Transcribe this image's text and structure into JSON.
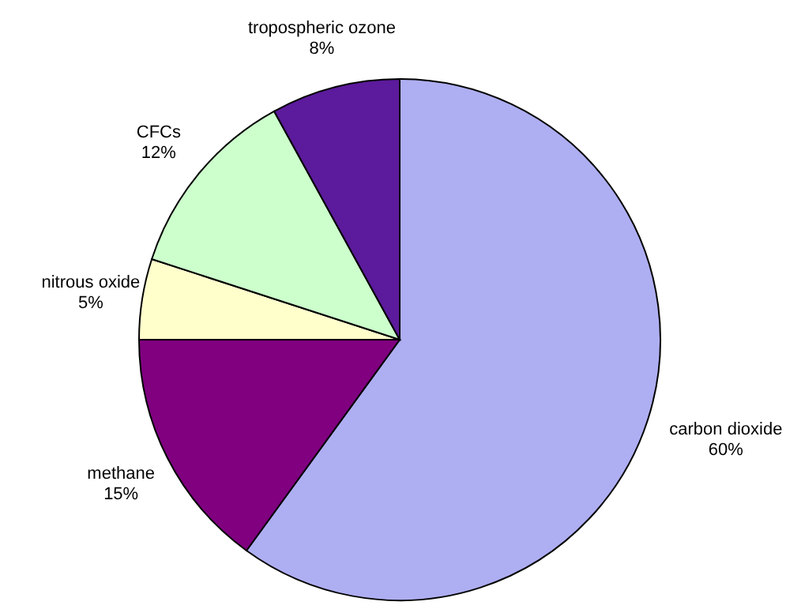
{
  "chart_data": {
    "type": "pie",
    "categories": [
      "carbon dioxide",
      "methane",
      "nitrous oxide",
      "CFCs",
      "tropospheric ozone"
    ],
    "values": [
      60,
      15,
      5,
      12,
      8
    ],
    "value_labels": [
      "60%",
      "15%",
      "5%",
      "12%",
      "8%"
    ],
    "colors": [
      "#aeaef2",
      "#800080",
      "#ffffcc",
      "#ccffcc",
      "#5c1a9c"
    ],
    "legend": false
  }
}
